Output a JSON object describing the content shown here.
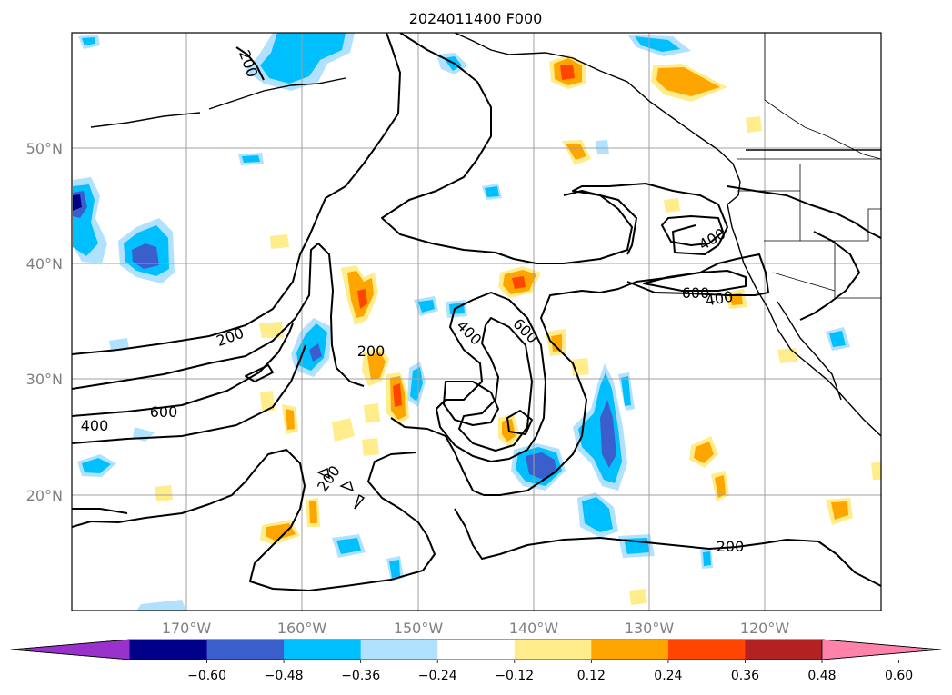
{
  "title": "2024011400 F000",
  "longitude_labels": [
    "170°W",
    "160°W",
    "150°W",
    "140°W",
    "130°W",
    "120°W"
  ],
  "latitude_labels": [
    "50°N",
    "40°N",
    "30°N",
    "20°N"
  ],
  "colorbar": {
    "tick_labels": [
      "−0.60",
      "−0.48",
      "−0.36",
      "−0.24",
      "−0.12",
      "0.12",
      "0.24",
      "0.36",
      "0.48",
      "0.60"
    ],
    "colors": [
      "#9932cc",
      "#00008b",
      "#3a5fcd",
      "#00bfff",
      "#b0e2ff",
      "#ffffff",
      "#ffec8b",
      "#ffa500",
      "#ff4500",
      "#b22222",
      "#ff82ab"
    ]
  },
  "contour_labels": [
    "200",
    "200",
    "200",
    "400",
    "600",
    "200",
    "200",
    "400",
    "600",
    "400",
    "600",
    "400",
    "200"
  ]
}
